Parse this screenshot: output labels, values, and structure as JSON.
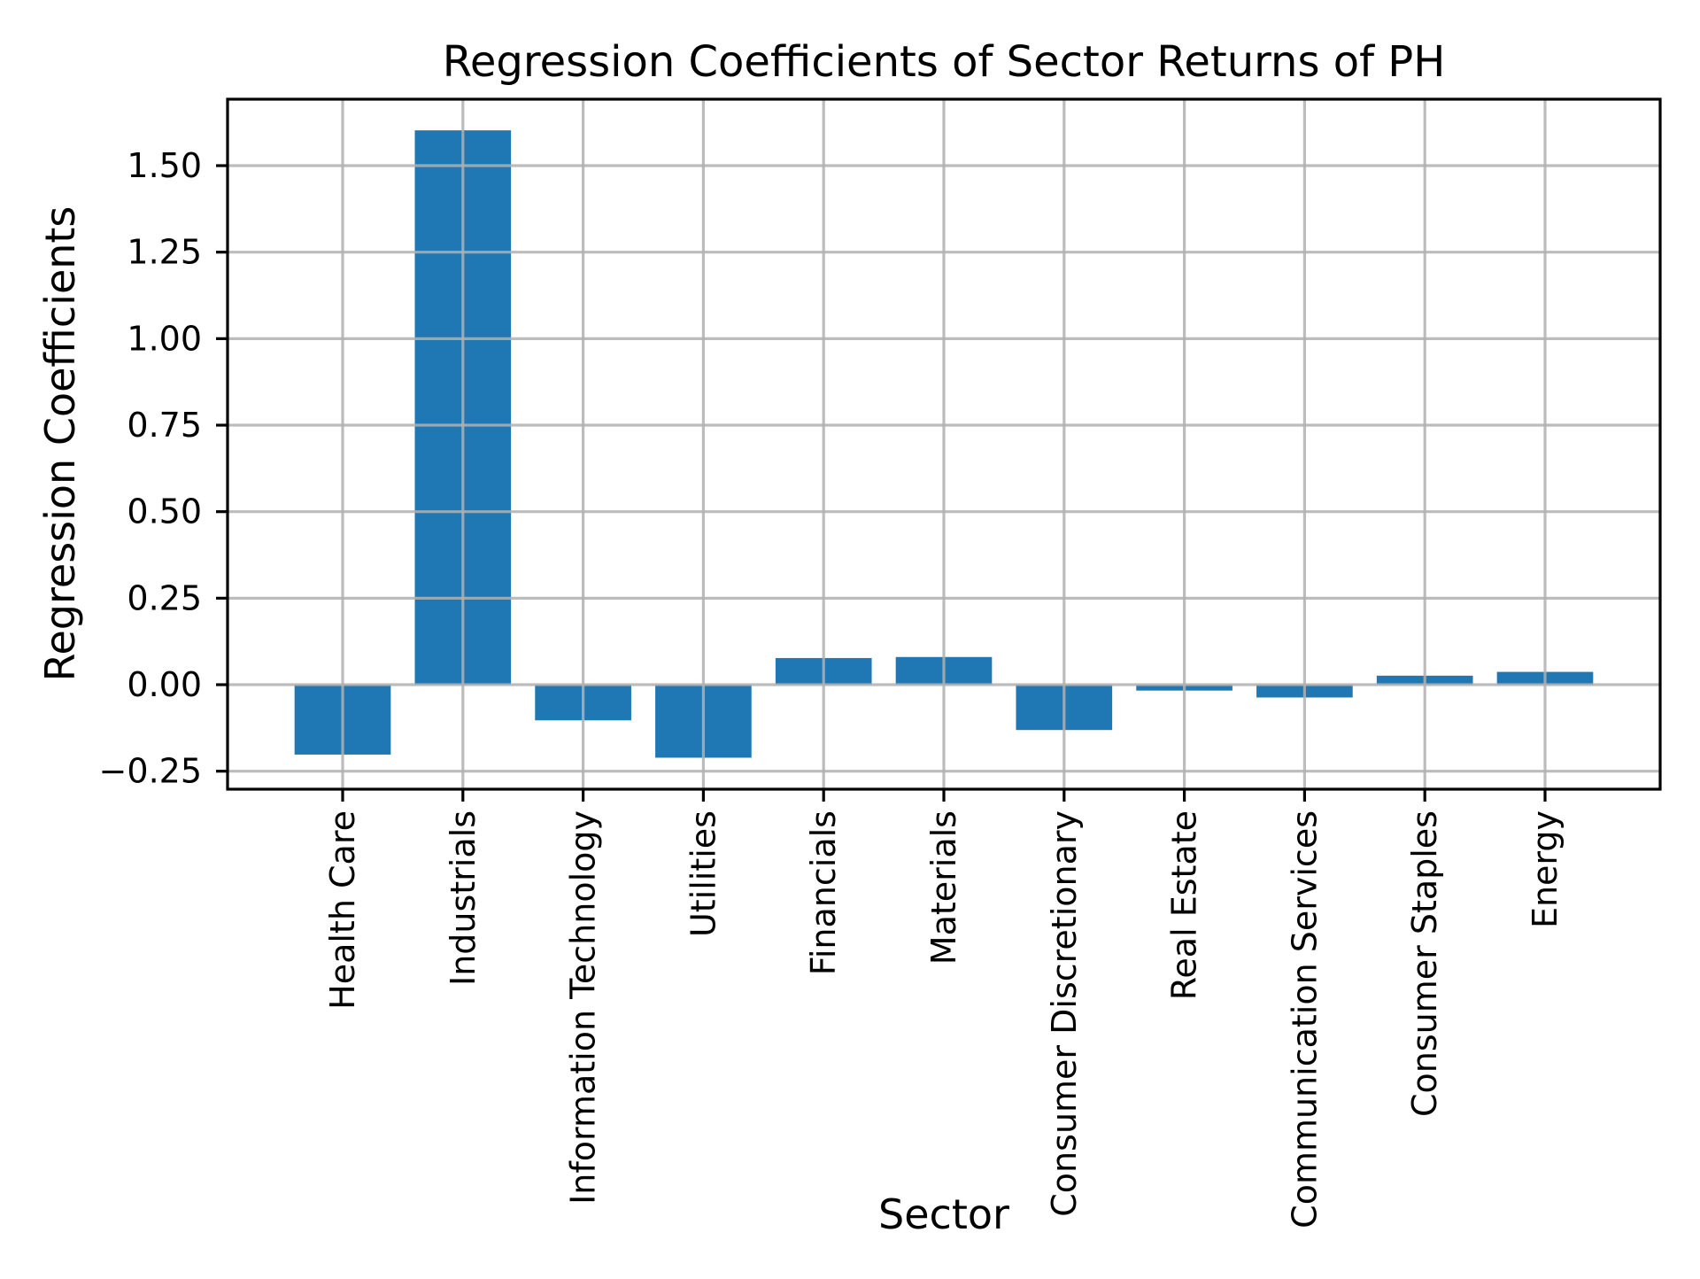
{
  "chart_data": {
    "type": "bar",
    "title": "Regression Coefficients of Sector Returns of PH",
    "xlabel": "Sector",
    "ylabel": "Regression Coefficients",
    "categories": [
      "Health Care",
      "Industrials",
      "Information Technology",
      "Utilities",
      "Financials",
      "Materials",
      "Consumer Discretionary",
      "Real Estate",
      "Communication Services",
      "Consumer Staples",
      "Energy"
    ],
    "values": [
      -0.202,
      1.602,
      -0.103,
      -0.211,
      0.077,
      0.08,
      -0.131,
      -0.017,
      -0.037,
      0.026,
      0.037
    ],
    "ylim": [
      -0.302,
      1.692
    ],
    "yticks": [
      -0.25,
      0.0,
      0.25,
      0.5,
      0.75,
      1.0,
      1.25,
      1.5
    ],
    "ytick_labels": [
      "−0.25",
      "0.00",
      "0.25",
      "0.50",
      "0.75",
      "1.00",
      "1.25",
      "1.50"
    ],
    "grid": true,
    "legend": "none",
    "bar_color": "#1f77b4",
    "grid_color": "#b0b0b0",
    "spine_color": "#000000",
    "bar_width_frac": 0.8
  }
}
